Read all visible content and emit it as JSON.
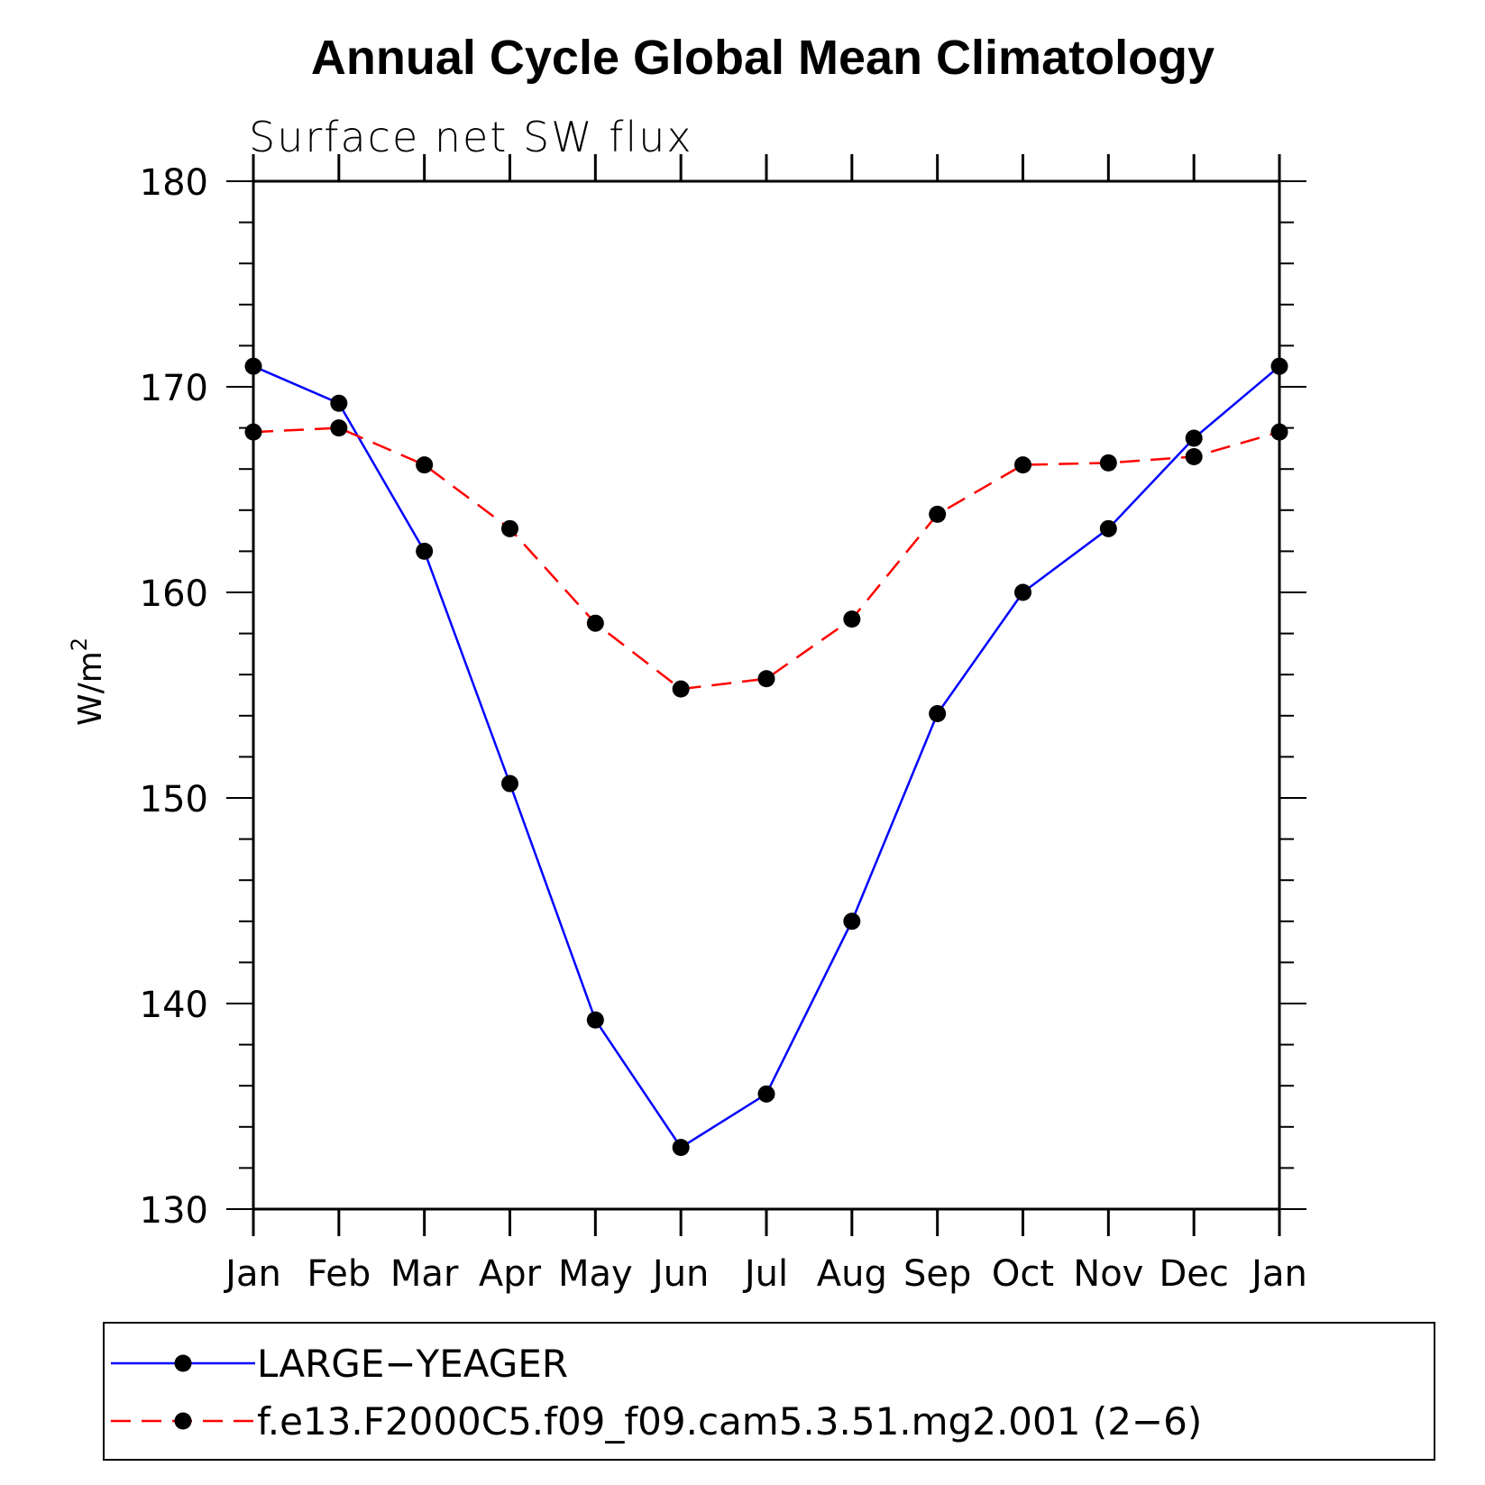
{
  "chart_data": {
    "type": "line",
    "title": "Annual Cycle Global Mean Climatology",
    "subtitle": "Surface net SW flux",
    "xlabel": "",
    "ylabel": "W/m",
    "ylabel_sup": "2",
    "ylim": [
      130,
      180
    ],
    "yticks": [
      130,
      140,
      150,
      160,
      170,
      180
    ],
    "categories": [
      "Jan",
      "Feb",
      "Mar",
      "Apr",
      "May",
      "Jun",
      "Jul",
      "Aug",
      "Sep",
      "Oct",
      "Nov",
      "Dec",
      "Jan"
    ],
    "grid": false,
    "legend_placement": "bottom",
    "series": [
      {
        "name": "LARGE−YEAGER",
        "color": "#0000ff",
        "dash": "solid",
        "marker": "filled-circle",
        "values": [
          171.0,
          169.2,
          162.0,
          150.7,
          139.2,
          133.0,
          135.6,
          144.0,
          154.1,
          160.0,
          163.1,
          167.5,
          171.0
        ]
      },
      {
        "name": "f.e13.F2000C5.f09_f09.cam5.3.51.mg2.001 (2−6)",
        "color": "#ff0000",
        "dash": "dashed",
        "marker": "filled-circle",
        "values": [
          167.8,
          168.0,
          166.2,
          163.1,
          158.5,
          155.3,
          155.8,
          158.7,
          163.8,
          166.2,
          166.3,
          166.6,
          167.8
        ]
      }
    ]
  }
}
